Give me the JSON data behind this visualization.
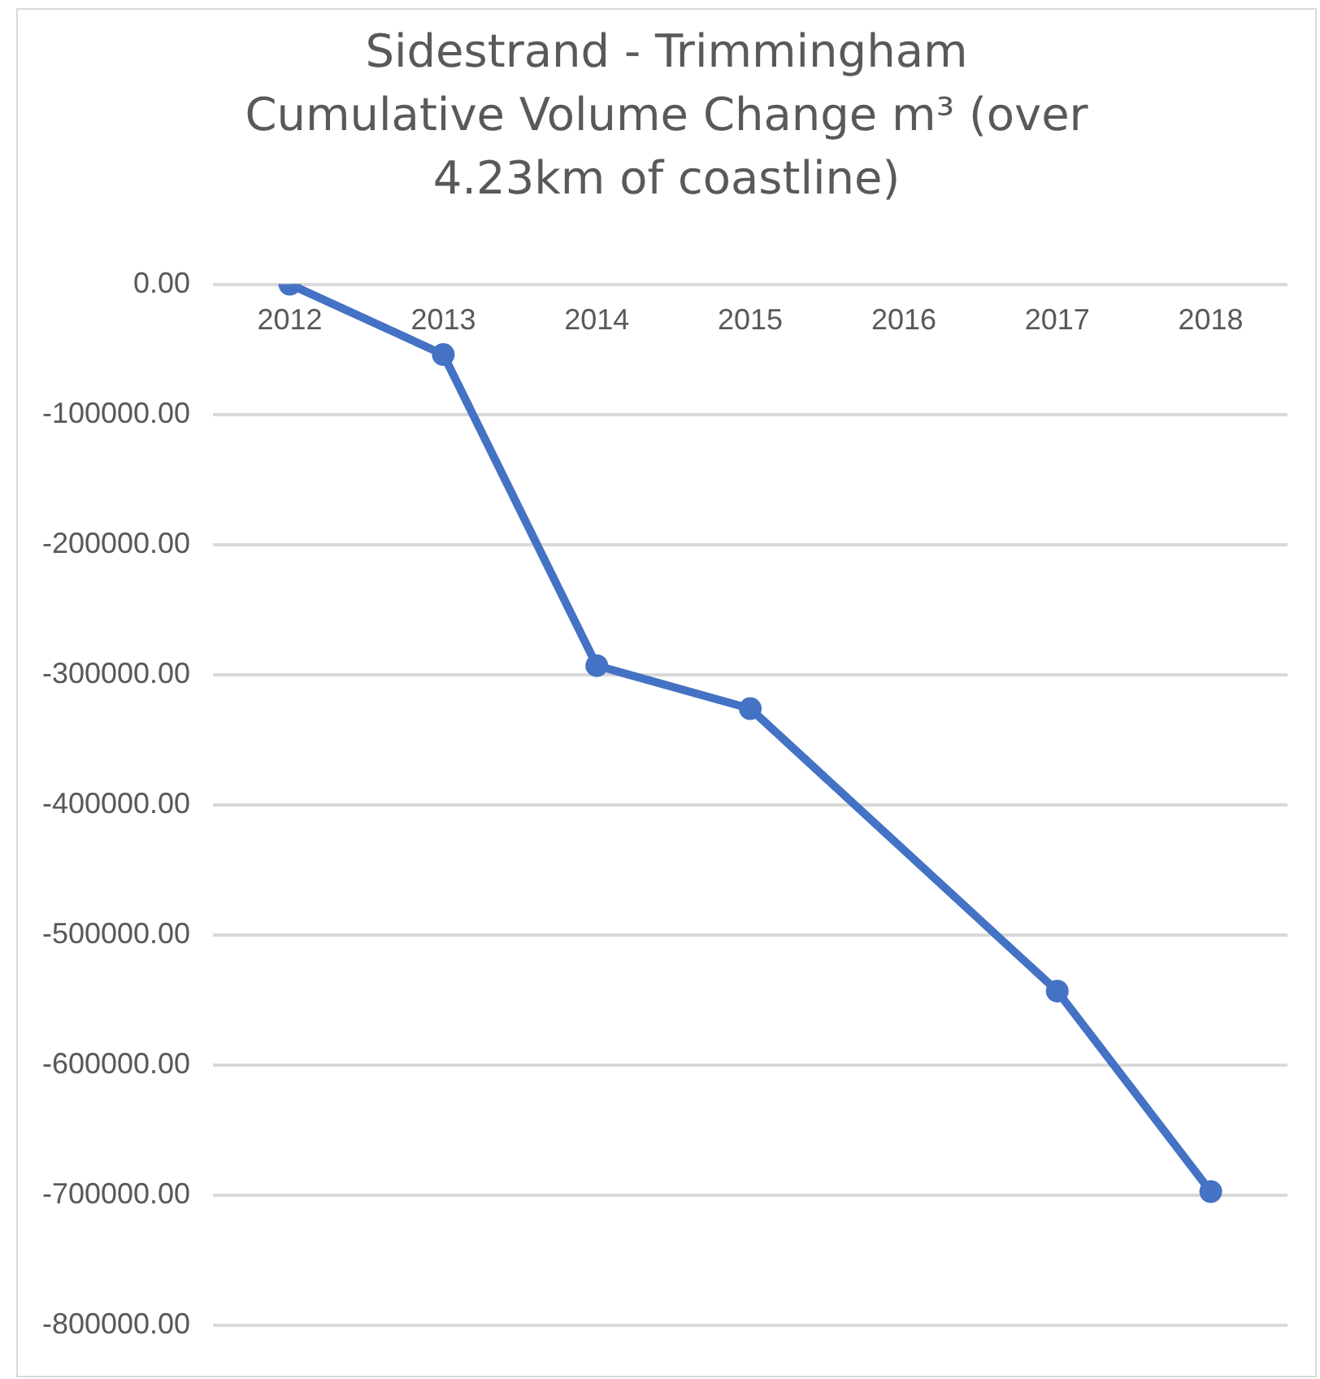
{
  "chart_data": {
    "type": "line",
    "title": "Sidestrand - Trimmingham Cumulative Volume Change m³ (over 4.23km of coastline)",
    "categories": [
      "2012",
      "2013",
      "2014",
      "2015",
      "2016",
      "2017",
      "2018"
    ],
    "series": [
      {
        "color": "#4472c4",
        "values": [
          0,
          -54000,
          -293000,
          -326000,
          null,
          -543000,
          -697000
        ]
      }
    ],
    "ylim": [
      -800000,
      0
    ],
    "yticks": [
      {
        "value": 0,
        "label": "0.00"
      },
      {
        "value": -100000,
        "label": "-100000.00"
      },
      {
        "value": -200000,
        "label": "-200000.00"
      },
      {
        "value": -300000,
        "label": "-300000.00"
      },
      {
        "value": -400000,
        "label": "-400000.00"
      },
      {
        "value": -500000,
        "label": "-500000.00"
      },
      {
        "value": -600000,
        "label": "-600000.00"
      },
      {
        "value": -700000,
        "label": "-700000.00"
      },
      {
        "value": -800000,
        "label": "-800000.00"
      }
    ],
    "grid": "y",
    "legend": false,
    "marker": "circle",
    "line_style": "solid"
  }
}
